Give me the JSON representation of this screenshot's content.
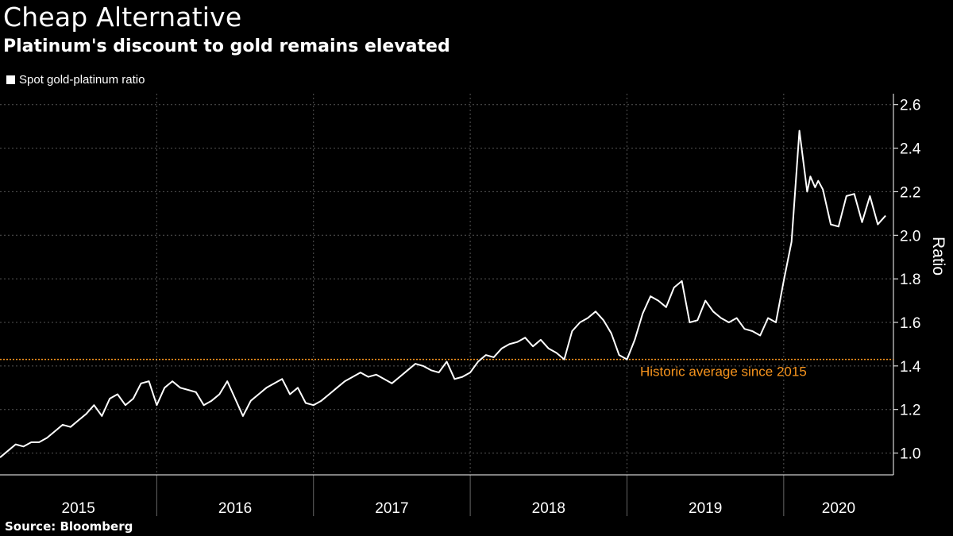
{
  "header": {
    "title": "Cheap Alternative",
    "subtitle": "Platinum's discount to gold remains elevated"
  },
  "legend": {
    "label": "Spot gold-platinum ratio"
  },
  "footer": {
    "source": "Source: Bloomberg"
  },
  "colors": {
    "background": "#000000",
    "line": "#ffffff",
    "reference": "#f7941d",
    "grid": "#555555"
  },
  "chart_data": {
    "type": "line",
    "ylabel": "Ratio",
    "ylim": [
      0.9,
      2.65
    ],
    "yticks": [
      1.0,
      1.2,
      1.4,
      1.6,
      1.8,
      2.0,
      2.2,
      2.4,
      2.6
    ],
    "ytick_labels": [
      "1.0",
      "1.2",
      "1.4",
      "1.6",
      "1.8",
      "2.0",
      "2.2",
      "2.4",
      "2.6"
    ],
    "xlim": [
      2015.0,
      2020.7
    ],
    "x_categories": [
      "2015",
      "2016",
      "2017",
      "2018",
      "2019",
      "2020"
    ],
    "reference_line": {
      "value": 1.43,
      "label": "Historic average since 2015"
    },
    "series": [
      {
        "name": "Spot gold-platinum ratio",
        "x": [
          2015.0,
          2015.05,
          2015.1,
          2015.15,
          2015.2,
          2015.25,
          2015.3,
          2015.35,
          2015.4,
          2015.45,
          2015.5,
          2015.55,
          2015.6,
          2015.65,
          2015.7,
          2015.75,
          2015.8,
          2015.85,
          2015.9,
          2015.95,
          2016.0,
          2016.05,
          2016.1,
          2016.15,
          2016.2,
          2016.25,
          2016.3,
          2016.35,
          2016.4,
          2016.45,
          2016.5,
          2016.55,
          2016.6,
          2016.65,
          2016.7,
          2016.75,
          2016.8,
          2016.85,
          2016.9,
          2016.95,
          2017.0,
          2017.05,
          2017.1,
          2017.15,
          2017.2,
          2017.25,
          2017.3,
          2017.35,
          2017.4,
          2017.45,
          2017.5,
          2017.55,
          2017.6,
          2017.65,
          2017.7,
          2017.75,
          2017.8,
          2017.85,
          2017.9,
          2017.95,
          2018.0,
          2018.05,
          2018.1,
          2018.15,
          2018.2,
          2018.25,
          2018.3,
          2018.35,
          2018.4,
          2018.45,
          2018.5,
          2018.55,
          2018.6,
          2018.65,
          2018.7,
          2018.75,
          2018.8,
          2018.85,
          2018.9,
          2018.95,
          2019.0,
          2019.05,
          2019.1,
          2019.15,
          2019.2,
          2019.25,
          2019.3,
          2019.35,
          2019.4,
          2019.45,
          2019.5,
          2019.55,
          2019.6,
          2019.65,
          2019.7,
          2019.75,
          2019.8,
          2019.85,
          2019.9,
          2019.95,
          2020.0,
          2020.05,
          2020.1,
          2020.15,
          2020.17,
          2020.2,
          2020.22,
          2020.25,
          2020.3,
          2020.35,
          2020.4,
          2020.45,
          2020.5,
          2020.55,
          2020.6,
          2020.65
        ],
        "values": [
          0.98,
          1.01,
          1.04,
          1.03,
          1.05,
          1.05,
          1.07,
          1.1,
          1.13,
          1.12,
          1.15,
          1.18,
          1.22,
          1.17,
          1.25,
          1.27,
          1.22,
          1.25,
          1.32,
          1.33,
          1.22,
          1.3,
          1.33,
          1.3,
          1.29,
          1.28,
          1.22,
          1.24,
          1.27,
          1.33,
          1.25,
          1.17,
          1.24,
          1.27,
          1.3,
          1.32,
          1.34,
          1.27,
          1.3,
          1.23,
          1.22,
          1.24,
          1.27,
          1.3,
          1.33,
          1.35,
          1.37,
          1.35,
          1.36,
          1.34,
          1.32,
          1.35,
          1.38,
          1.41,
          1.4,
          1.38,
          1.37,
          1.42,
          1.34,
          1.35,
          1.37,
          1.42,
          1.45,
          1.44,
          1.48,
          1.5,
          1.51,
          1.53,
          1.49,
          1.52,
          1.48,
          1.46,
          1.43,
          1.56,
          1.6,
          1.62,
          1.65,
          1.61,
          1.55,
          1.45,
          1.43,
          1.52,
          1.64,
          1.72,
          1.7,
          1.67,
          1.76,
          1.79,
          1.6,
          1.61,
          1.7,
          1.65,
          1.62,
          1.6,
          1.62,
          1.57,
          1.56,
          1.54,
          1.62,
          1.6,
          1.79,
          1.97,
          2.48,
          2.2,
          2.27,
          2.22,
          2.25,
          2.21,
          2.05,
          2.04,
          2.18,
          2.19,
          2.06,
          2.18,
          2.05,
          2.09
        ]
      }
    ]
  }
}
